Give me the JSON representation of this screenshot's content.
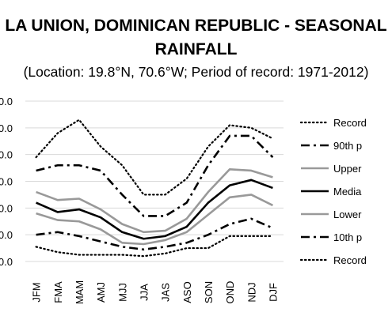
{
  "chart_data": {
    "type": "line",
    "title_line1": "LA UNION, DOMINICAN REPUBLIC - SEASONAL",
    "title_line2": "RAINFALL",
    "subtitle": "(Location: 19.8°N, 70.6°W; Period of record: 1971-2012)",
    "categories": [
      "JFM",
      "FMA",
      "MAM",
      "AMJ",
      "MJJ",
      "JJA",
      "JAS",
      "ASO",
      "SON",
      "OND",
      "NDJ",
      "DJF"
    ],
    "y_tick_labels": [
      "0.0",
      "0.0",
      "0.0",
      "0.0",
      "0.0",
      "0.0",
      "0.0"
    ],
    "ylim": [
      0,
      6
    ],
    "grid": true,
    "legend_position": "right",
    "series": [
      {
        "name": "Record",
        "style": "dotted",
        "color": "#000000",
        "values": [
          3.9,
          4.8,
          5.3,
          4.3,
          3.6,
          2.5,
          2.5,
          3.1,
          4.3,
          5.1,
          5.0,
          4.6
        ]
      },
      {
        "name": "90th p",
        "style": "dashdot",
        "color": "#000000",
        "values": [
          3.4,
          3.6,
          3.6,
          3.4,
          2.5,
          1.7,
          1.7,
          2.2,
          3.6,
          4.7,
          4.7,
          3.9
        ]
      },
      {
        "name": "Upper",
        "style": "solid-gray",
        "color": "#999999",
        "values": [
          2.6,
          2.3,
          2.35,
          1.95,
          1.4,
          1.1,
          1.15,
          1.6,
          2.6,
          3.45,
          3.4,
          3.15
        ]
      },
      {
        "name": "Media",
        "style": "solid-black",
        "color": "#000000",
        "values": [
          2.2,
          1.85,
          1.95,
          1.65,
          1.1,
          0.85,
          0.95,
          1.3,
          2.2,
          2.85,
          3.05,
          2.75
        ]
      },
      {
        "name": "Lower",
        "style": "solid-gray",
        "color": "#999999",
        "values": [
          1.8,
          1.55,
          1.5,
          1.2,
          0.7,
          0.65,
          0.8,
          1.1,
          1.75,
          2.4,
          2.5,
          2.1
        ]
      },
      {
        "name": "10th p",
        "style": "dashdot",
        "color": "#000000",
        "values": [
          1.0,
          1.1,
          0.95,
          0.75,
          0.55,
          0.45,
          0.55,
          0.7,
          1.0,
          1.4,
          1.6,
          1.25
        ]
      },
      {
        "name": "Record",
        "style": "dotted",
        "color": "#000000",
        "values": [
          0.55,
          0.35,
          0.25,
          0.25,
          0.25,
          0.2,
          0.3,
          0.5,
          0.5,
          0.95,
          0.95,
          0.95
        ]
      }
    ]
  }
}
